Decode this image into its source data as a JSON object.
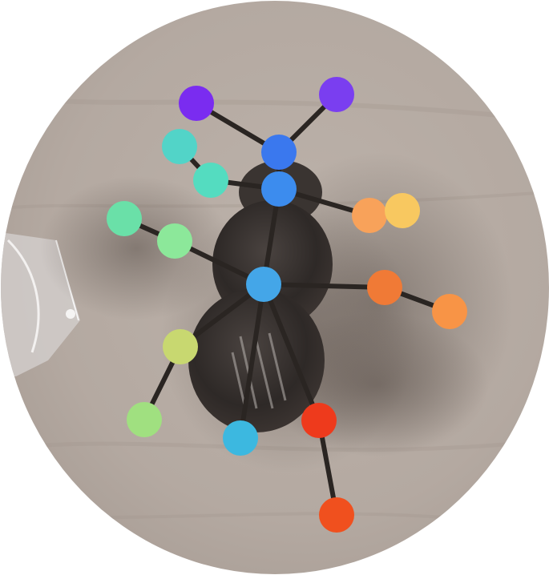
{
  "image": {
    "subject": "insect-with-pose-keypoints",
    "background_color": "#b8aea6",
    "frame_shape": "circle"
  },
  "keypoints": [
    {
      "id": "antenna-left-tip",
      "color": "#7a2cf0"
    },
    {
      "id": "antenna-right-tip",
      "color": "#7a3ef0"
    },
    {
      "id": "front-left-leg-tip",
      "color": "#52d4c8"
    },
    {
      "id": "front-left-leg-joint",
      "color": "#54dcc0"
    },
    {
      "id": "head-upper",
      "color": "#3a78ee"
    },
    {
      "id": "head-lower",
      "color": "#3c8cee"
    },
    {
      "id": "mid-left-leg-tip",
      "color": "#6ae0a8"
    },
    {
      "id": "mid-left-leg-joint",
      "color": "#8ce89a"
    },
    {
      "id": "front-right-leg-joint",
      "color": "#f8a25a"
    },
    {
      "id": "front-right-leg-tip",
      "color": "#f8c860"
    },
    {
      "id": "thorax",
      "color": "#44a6e8"
    },
    {
      "id": "mid-right-leg-joint",
      "color": "#f07a36"
    },
    {
      "id": "mid-right-leg-tip",
      "color": "#f89446"
    },
    {
      "id": "hind-left-leg-joint",
      "color": "#c8d870"
    },
    {
      "id": "hind-left-leg-tip",
      "color": "#a0e080"
    },
    {
      "id": "abdomen-tip",
      "color": "#3cb8e0"
    },
    {
      "id": "hind-right-leg-joint",
      "color": "#ee3a1c"
    },
    {
      "id": "hind-right-leg-tip",
      "color": "#f0501e"
    }
  ]
}
